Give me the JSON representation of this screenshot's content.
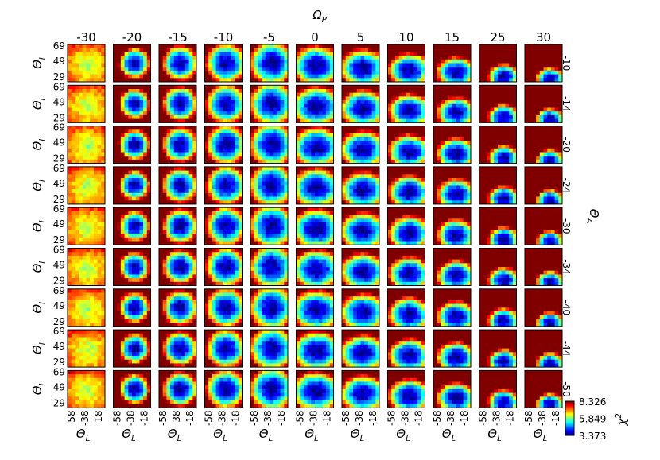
{
  "chart_data": {
    "type": "heatmap",
    "title": "Ω_P",
    "column_parameter": {
      "symbol": "Ω",
      "subscript": "P",
      "values": [
        "-30",
        "-20",
        "-15",
        "-10",
        "-5",
        "0",
        "5",
        "10",
        "15",
        "25",
        "30"
      ]
    },
    "row_parameter": {
      "symbol": "Θ",
      "subscript": "A",
      "values": [
        "-10",
        "-14",
        "-20",
        "-24",
        "-30",
        "-34",
        "-40",
        "-44",
        "-50"
      ]
    },
    "x_axis": {
      "symbol": "Θ",
      "subscript": "L",
      "ticks": [
        "-58",
        "-38",
        "-18"
      ],
      "range": [
        -58,
        -18
      ]
    },
    "y_axis": {
      "symbol": "Θ",
      "subscript": "I",
      "ticks": [
        "69",
        "49",
        "29"
      ],
      "range": [
        29,
        69
      ]
    },
    "colorbar": {
      "label_symbol": "χ",
      "label_superscript": "2",
      "ticks": [
        "8.326",
        "5.849",
        "3.373"
      ],
      "min": 3.373,
      "max": 8.326,
      "colormap": "jet"
    },
    "grid_cells": 10,
    "grid": false
  }
}
